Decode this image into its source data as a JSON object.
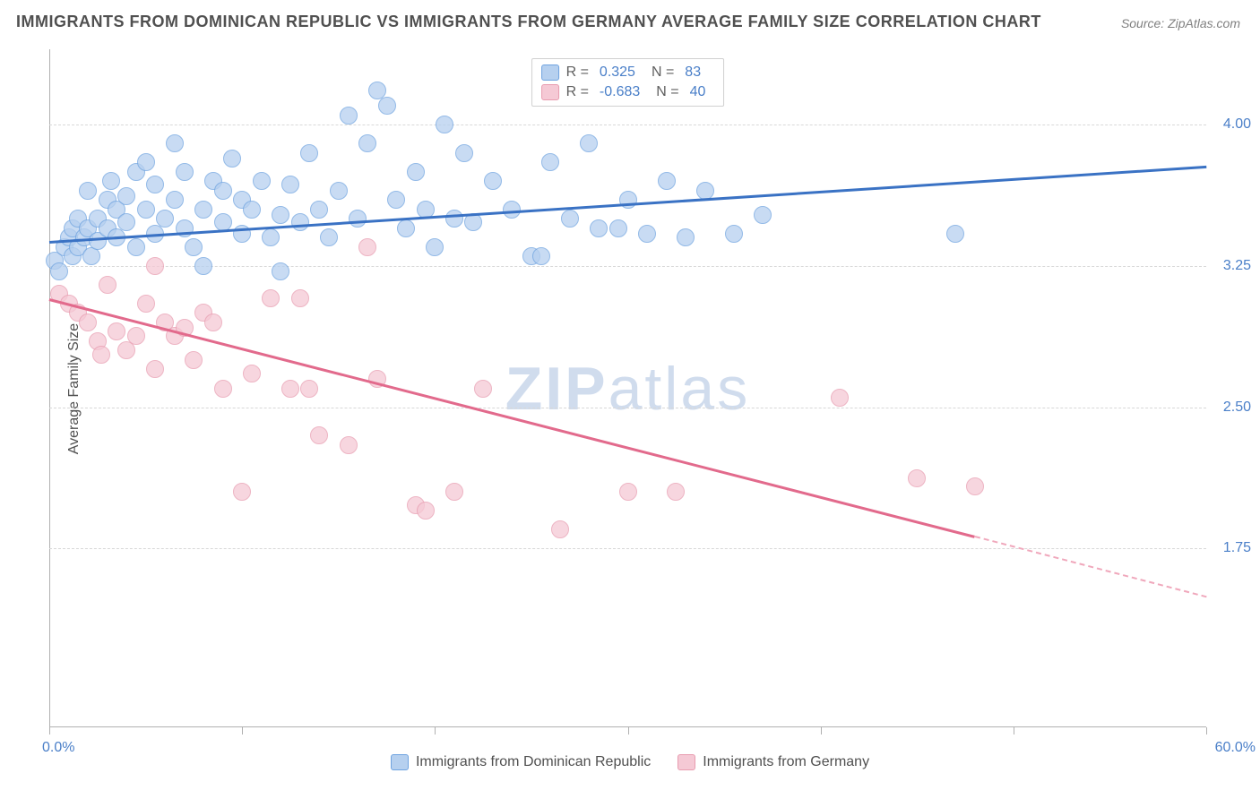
{
  "title": "IMMIGRANTS FROM DOMINICAN REPUBLIC VS IMMIGRANTS FROM GERMANY AVERAGE FAMILY SIZE CORRELATION CHART",
  "source": "Source: ZipAtlas.com",
  "watermark_bold": "ZIP",
  "watermark_light": "atlas",
  "chart": {
    "type": "scatter",
    "ylabel": "Average Family Size",
    "xlim": [
      0,
      60
    ],
    "ylim": [
      0.8,
      4.4
    ],
    "yticks": [
      1.75,
      2.5,
      3.25,
      4.0
    ],
    "ytick_labels": [
      "1.75",
      "2.50",
      "3.25",
      "4.00"
    ],
    "xticks": [
      0,
      10,
      20,
      30,
      40,
      50,
      60
    ],
    "xlabel_min": "0.0%",
    "xlabel_max": "60.0%",
    "background_color": "#ffffff",
    "grid_color": "#d8d8d8",
    "axis_color": "#b0b0b0",
    "tick_label_color": "#4a7fc8",
    "marker_radius": 10,
    "marker_fill_opacity": 0.35,
    "marker_stroke_width": 1.2,
    "series": [
      {
        "name": "Immigrants from Dominican Republic",
        "color": "#6fa3e0",
        "fill": "#b6d0ef",
        "R": "0.325",
        "N": "83",
        "trend": {
          "x1": 0,
          "y1": 3.38,
          "x2": 60,
          "y2": 3.78,
          "color": "#3a72c4",
          "width": 2.5
        },
        "points": [
          [
            0.3,
            3.28
          ],
          [
            0.5,
            3.22
          ],
          [
            0.8,
            3.35
          ],
          [
            1.0,
            3.4
          ],
          [
            1.2,
            3.45
          ],
          [
            1.2,
            3.3
          ],
          [
            1.5,
            3.5
          ],
          [
            1.5,
            3.35
          ],
          [
            1.8,
            3.4
          ],
          [
            2.0,
            3.65
          ],
          [
            2.0,
            3.45
          ],
          [
            2.2,
            3.3
          ],
          [
            2.5,
            3.38
          ],
          [
            2.5,
            3.5
          ],
          [
            3.0,
            3.6
          ],
          [
            3.0,
            3.45
          ],
          [
            3.2,
            3.7
          ],
          [
            3.5,
            3.55
          ],
          [
            3.5,
            3.4
          ],
          [
            4.0,
            3.62
          ],
          [
            4.0,
            3.48
          ],
          [
            4.5,
            3.75
          ],
          [
            4.5,
            3.35
          ],
          [
            5.0,
            3.8
          ],
          [
            5.0,
            3.55
          ],
          [
            5.5,
            3.42
          ],
          [
            5.5,
            3.68
          ],
          [
            6.0,
            3.5
          ],
          [
            6.5,
            3.9
          ],
          [
            6.5,
            3.6
          ],
          [
            7.0,
            3.45
          ],
          [
            7.0,
            3.75
          ],
          [
            7.5,
            3.35
          ],
          [
            8.0,
            3.25
          ],
          [
            8.0,
            3.55
          ],
          [
            8.5,
            3.7
          ],
          [
            9.0,
            3.65
          ],
          [
            9.0,
            3.48
          ],
          [
            9.5,
            3.82
          ],
          [
            10.0,
            3.42
          ],
          [
            10.0,
            3.6
          ],
          [
            10.5,
            3.55
          ],
          [
            11.0,
            3.7
          ],
          [
            11.5,
            3.4
          ],
          [
            12.0,
            3.22
          ],
          [
            12.0,
            3.52
          ],
          [
            12.5,
            3.68
          ],
          [
            13.0,
            3.48
          ],
          [
            13.5,
            3.85
          ],
          [
            14.0,
            3.55
          ],
          [
            14.5,
            3.4
          ],
          [
            15.0,
            3.65
          ],
          [
            15.5,
            4.05
          ],
          [
            16.0,
            3.5
          ],
          [
            16.5,
            3.9
          ],
          [
            17.0,
            4.18
          ],
          [
            17.5,
            4.1
          ],
          [
            18.0,
            3.6
          ],
          [
            18.5,
            3.45
          ],
          [
            19.0,
            3.75
          ],
          [
            19.5,
            3.55
          ],
          [
            20.0,
            3.35
          ],
          [
            20.5,
            4.0
          ],
          [
            21.0,
            3.5
          ],
          [
            21.5,
            3.85
          ],
          [
            22.0,
            3.48
          ],
          [
            23.0,
            3.7
          ],
          [
            24.0,
            3.55
          ],
          [
            25.0,
            3.3
          ],
          [
            25.5,
            3.3
          ],
          [
            26.0,
            3.8
          ],
          [
            27.0,
            3.5
          ],
          [
            28.0,
            3.9
          ],
          [
            28.5,
            3.45
          ],
          [
            29.5,
            3.45
          ],
          [
            30.0,
            3.6
          ],
          [
            31.0,
            3.42
          ],
          [
            32.0,
            3.7
          ],
          [
            33.0,
            3.4
          ],
          [
            34.0,
            3.65
          ],
          [
            35.5,
            3.42
          ],
          [
            37.0,
            3.52
          ],
          [
            47.0,
            3.42
          ]
        ]
      },
      {
        "name": "Immigrants from Germany",
        "color": "#e89cb0",
        "fill": "#f5c9d5",
        "R": "-0.683",
        "N": "40",
        "trend": {
          "x1": 0,
          "y1": 3.08,
          "x2": 48,
          "y2": 1.82,
          "color": "#e26a8c",
          "width": 2.5
        },
        "trend_ext": {
          "x1": 48,
          "y1": 1.82,
          "x2": 60,
          "y2": 1.5,
          "color": "#f0a8bc"
        },
        "points": [
          [
            0.5,
            3.1
          ],
          [
            1.0,
            3.05
          ],
          [
            1.5,
            3.0
          ],
          [
            2.0,
            2.95
          ],
          [
            2.5,
            2.85
          ],
          [
            2.7,
            2.78
          ],
          [
            3.0,
            3.15
          ],
          [
            3.5,
            2.9
          ],
          [
            4.0,
            2.8
          ],
          [
            4.5,
            2.88
          ],
          [
            5.0,
            3.05
          ],
          [
            5.5,
            3.25
          ],
          [
            5.5,
            2.7
          ],
          [
            6.0,
            2.95
          ],
          [
            6.5,
            2.88
          ],
          [
            7.0,
            2.92
          ],
          [
            7.5,
            2.75
          ],
          [
            8.0,
            3.0
          ],
          [
            8.5,
            2.95
          ],
          [
            9.0,
            2.6
          ],
          [
            10.0,
            2.05
          ],
          [
            10.5,
            2.68
          ],
          [
            11.5,
            3.08
          ],
          [
            12.5,
            2.6
          ],
          [
            13.0,
            3.08
          ],
          [
            13.5,
            2.6
          ],
          [
            14.0,
            2.35
          ],
          [
            15.5,
            2.3
          ],
          [
            16.5,
            3.35
          ],
          [
            17.0,
            2.65
          ],
          [
            19.0,
            1.98
          ],
          [
            19.5,
            1.95
          ],
          [
            21.0,
            2.05
          ],
          [
            22.5,
            2.6
          ],
          [
            26.5,
            1.85
          ],
          [
            30.0,
            2.05
          ],
          [
            32.5,
            2.05
          ],
          [
            41.0,
            2.55
          ],
          [
            45.0,
            2.12
          ],
          [
            48.0,
            2.08
          ]
        ]
      }
    ]
  },
  "legend_bottom": [
    "Immigrants from Dominican Republic",
    "Immigrants from Germany"
  ]
}
